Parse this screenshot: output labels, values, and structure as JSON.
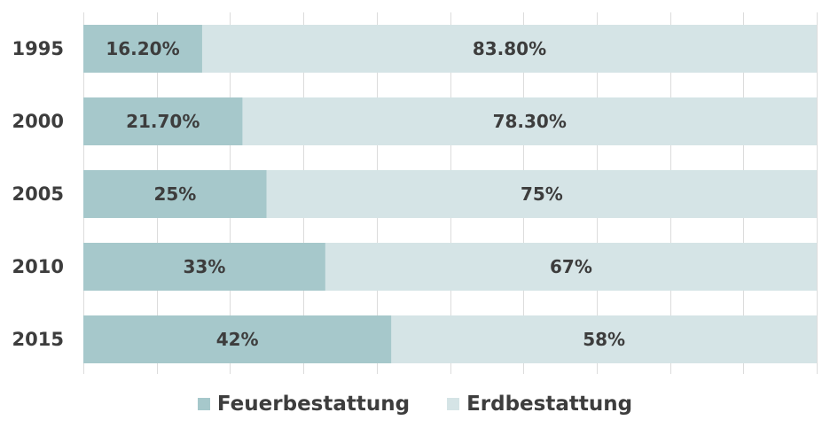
{
  "chart_data": {
    "type": "bar",
    "orientation": "horizontal",
    "stacked": true,
    "categories": [
      "1995",
      "2000",
      "2005",
      "2010",
      "2015"
    ],
    "series": [
      {
        "name": "Feuerbestattung",
        "color": "#a6c8cb",
        "values": [
          16.2,
          21.7,
          25,
          33,
          42
        ],
        "labels": [
          "16.20%",
          "21.70%",
          "25%",
          "33%",
          "42%"
        ]
      },
      {
        "name": "Erdbestattung",
        "color": "#d5e4e6",
        "values": [
          83.8,
          78.3,
          75,
          67,
          58
        ],
        "labels": [
          "83.80%",
          "78.30%",
          "75%",
          "67%",
          "58%"
        ]
      }
    ],
    "xlim": [
      0,
      100
    ],
    "grid": true,
    "legend_position": "bottom"
  }
}
